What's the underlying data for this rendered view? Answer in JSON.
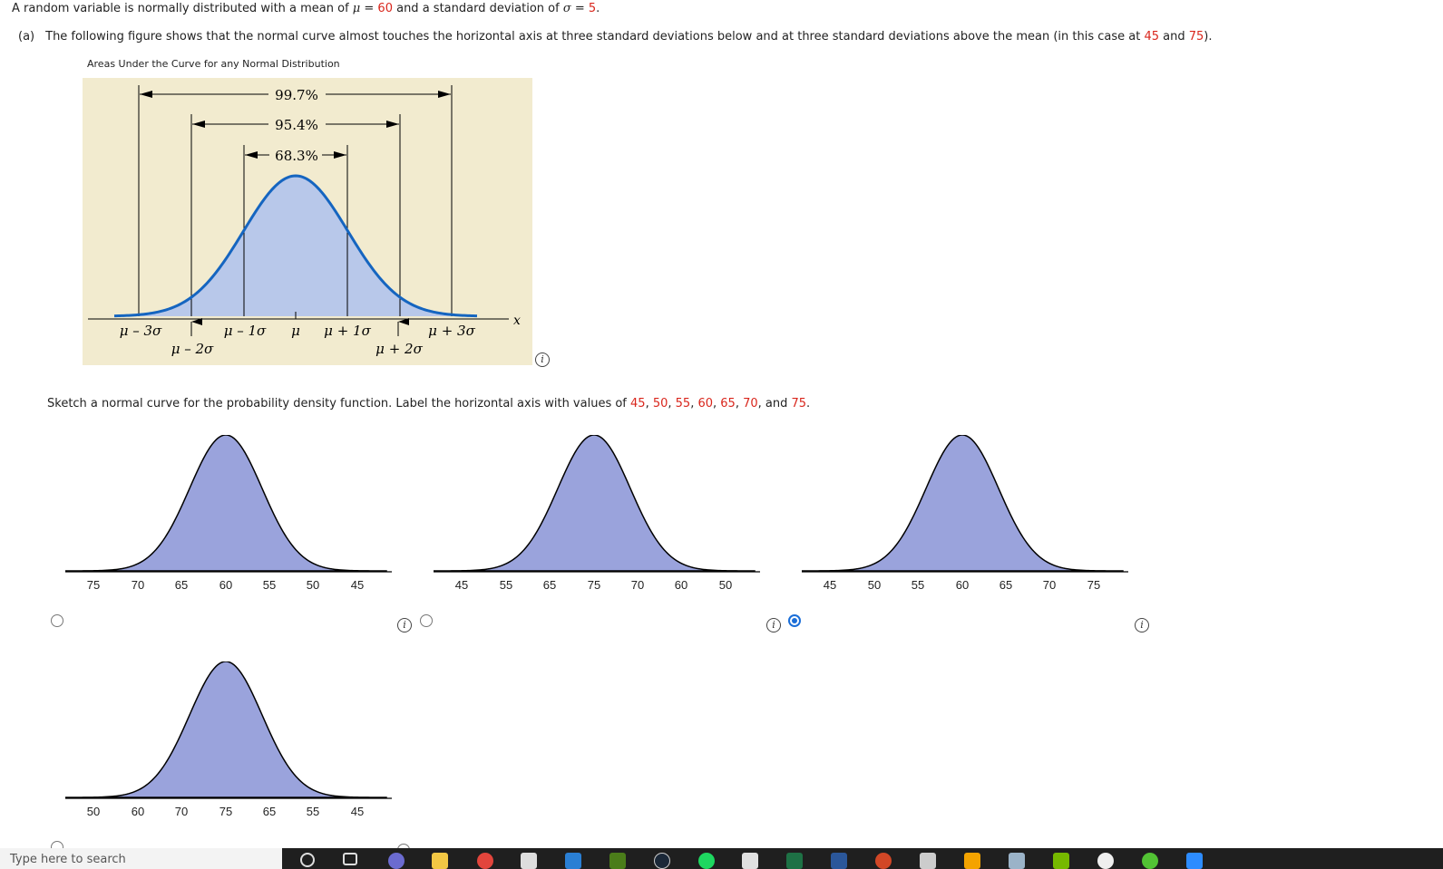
{
  "problem": {
    "intro": [
      "A random variable is normally distributed with a mean of ",
      "μ",
      " = ",
      "60",
      " and a standard deviation of ",
      "σ",
      " = ",
      "5",
      "."
    ],
    "part_a_label": "(a)",
    "part_a_text": [
      "The following figure shows that the normal curve almost touches the horizontal axis at three standard deviations below and at three standard deviations above the mean (in this case at ",
      "45",
      " and ",
      "75",
      ")."
    ],
    "figure_caption": "Areas Under the Curve for any Normal Distribution",
    "sketch_instruction": [
      "Sketch a normal curve for the probability density function. Label the horizontal axis with values of ",
      "45",
      ", ",
      "50",
      ", ",
      "55",
      ", ",
      "60",
      ", ",
      "65",
      ", ",
      "70",
      ", and ",
      "75",
      "."
    ]
  },
  "reference_figure": {
    "percent_997": "99.7%",
    "percent_954": "95.4%",
    "percent_683": "68.3%",
    "label_m3": "μ – 3σ",
    "label_m2": "μ – 2σ",
    "label_m1": "μ – 1σ",
    "label_mu": "μ",
    "label_p1": "μ + 1σ",
    "label_p2": "μ + 2σ",
    "label_p3": "μ + 3σ",
    "axis_var": "x",
    "colors": {
      "background": "#f2ebcf",
      "fill": "#b8c8ea",
      "curve": "#1565c0"
    }
  },
  "options": [
    {
      "ticks": [
        "75",
        "70",
        "65",
        "60",
        "55",
        "50",
        "45"
      ],
      "selected": false
    },
    {
      "ticks": [
        "45",
        "55",
        "65",
        "75",
        "70",
        "60",
        "50"
      ],
      "selected": false
    },
    {
      "ticks": [
        "45",
        "50",
        "55",
        "60",
        "65",
        "70",
        "75"
      ],
      "selected": true
    },
    {
      "ticks": [
        "50",
        "60",
        "70",
        "75",
        "65",
        "55",
        "45"
      ],
      "selected": false
    }
  ],
  "option_colors": {
    "fill": "#9aa3dc",
    "stroke": "#000000"
  },
  "info_icon_glyph": "i",
  "taskbar": {
    "search_placeholder": "Type here to search",
    "icons": [
      "cortana-icon",
      "task-view-icon",
      "app-icon",
      "file-explorer-icon",
      "chrome-icon",
      "store-icon",
      "mail-icon",
      "nvidia-icon",
      "steam-icon",
      "spotify-icon",
      "app2-icon",
      "excel-icon",
      "word-icon",
      "powerpoint-icon",
      "app3-icon",
      "rockstar-icon",
      "app4-icon",
      "geforce-icon",
      "xbox-icon",
      "app5-icon",
      "zoom-icon"
    ]
  }
}
